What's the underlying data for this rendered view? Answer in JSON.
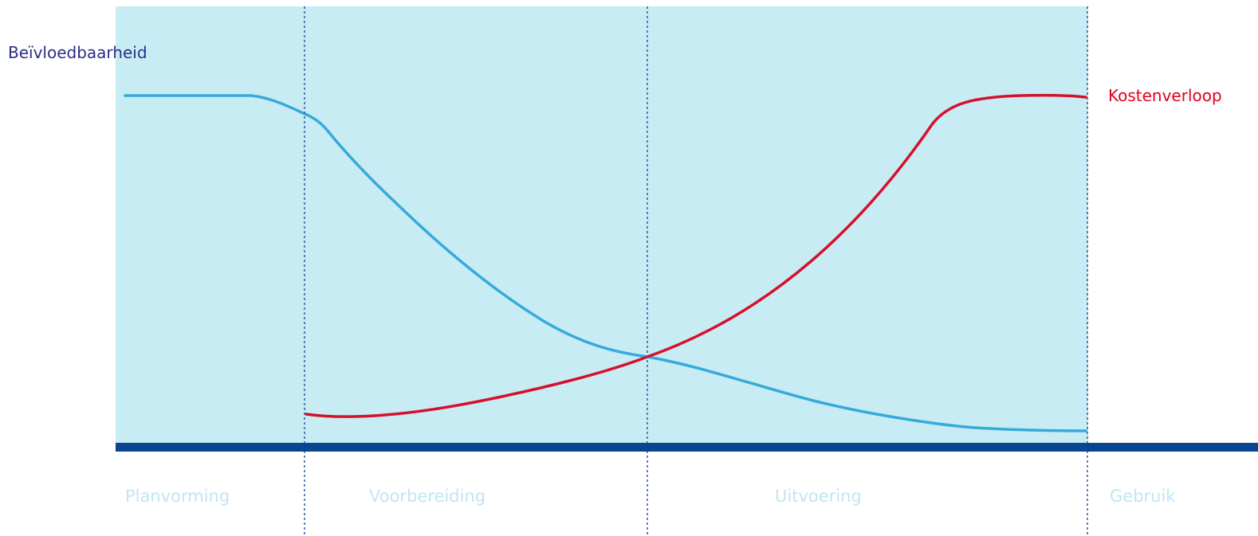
{
  "labels": {
    "influence": "Beïvloedbaarheid",
    "cost": "Kostenverloop"
  },
  "phases": [
    "Planvorming",
    "Voorbereiding",
    "Uitvoering",
    "Gebruik"
  ],
  "colors": {
    "background": "#c8ecf3",
    "influence_curve": "#36aadb",
    "cost_curve": "#d6102c",
    "baseline": "#0a4592",
    "divider": "#2a5da8",
    "influence_label": "#2b2e87",
    "cost_label": "#e2001a",
    "phase_label": "#bfe6f1"
  }
}
